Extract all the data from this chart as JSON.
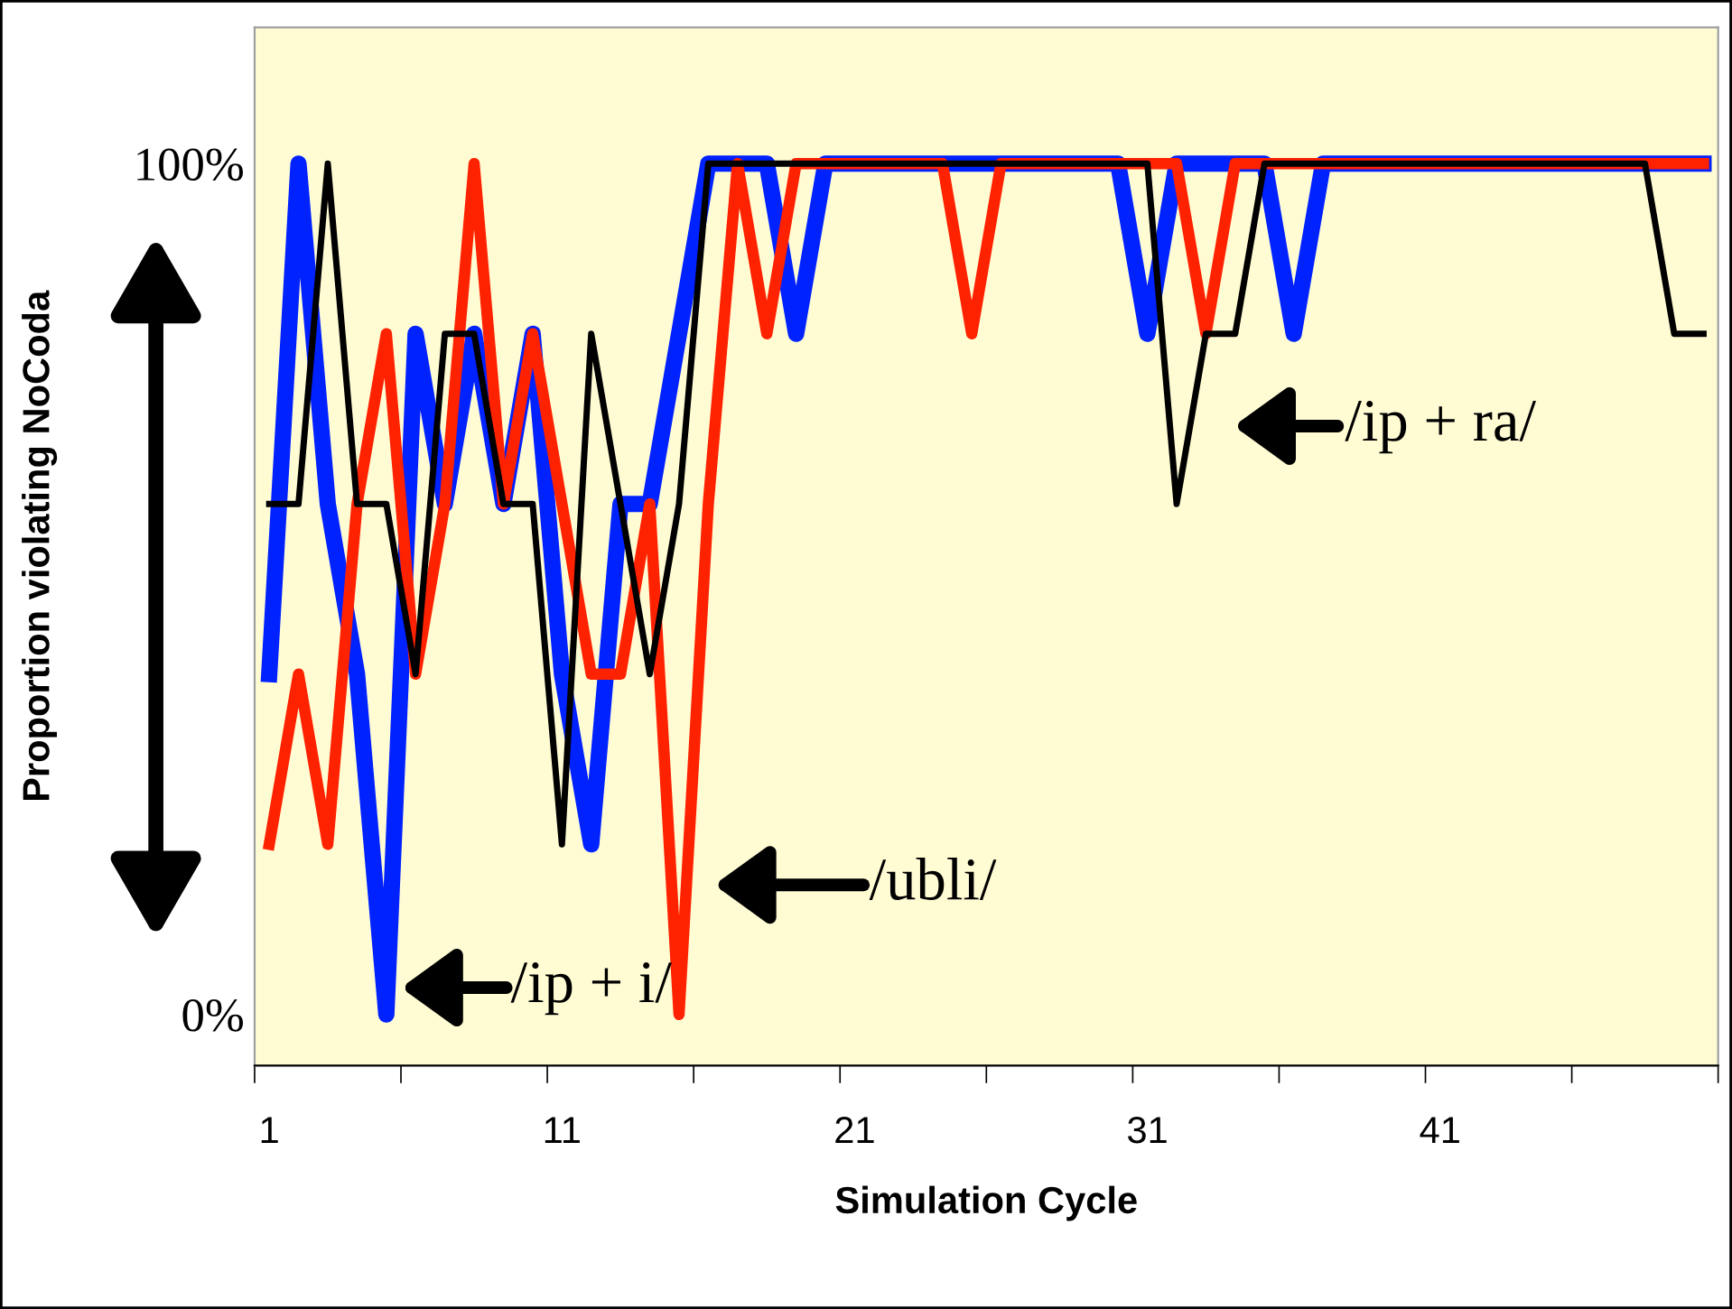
{
  "chart_data": {
    "type": "line",
    "xlabel": "Simulation Cycle",
    "ylabel": "Proportion violating NoCoda",
    "categories": [
      "1",
      null,
      null,
      null,
      null,
      null,
      null,
      null,
      null,
      null,
      "11",
      null,
      null,
      null,
      null,
      null,
      null,
      null,
      null,
      null,
      "21",
      null,
      null,
      null,
      null,
      null,
      null,
      null,
      null,
      null,
      "31",
      null,
      null,
      null,
      null,
      null,
      null,
      null,
      null,
      null,
      "41",
      null,
      null,
      null,
      null,
      null,
      null,
      null,
      null,
      null
    ],
    "series": [
      {
        "color": "#0022ff",
        "values": [
          40,
          100,
          60,
          40,
          0,
          80,
          60,
          80,
          60,
          80,
          40,
          20,
          60,
          60,
          80,
          100,
          100,
          100,
          80,
          100,
          100,
          100,
          100,
          100,
          100,
          100,
          100,
          100,
          100,
          100,
          80,
          100,
          100,
          100,
          100,
          80,
          100,
          100,
          100,
          100,
          100,
          100,
          100,
          100,
          100,
          100,
          100,
          100,
          100,
          100
        ]
      },
      {
        "color": "#ff2200",
        "values": [
          20,
          40,
          20,
          60,
          80,
          40,
          60,
          100,
          60,
          80,
          60,
          40,
          40,
          60,
          0,
          60,
          100,
          80,
          100,
          100,
          100,
          100,
          100,
          100,
          80,
          100,
          100,
          100,
          100,
          100,
          100,
          100,
          80,
          100,
          100,
          100,
          100,
          100,
          100,
          100,
          100,
          100,
          100,
          100,
          100,
          100,
          100,
          100,
          100,
          100
        ]
      },
      {
        "color": "#000000",
        "values": [
          60,
          60,
          100,
          60,
          60,
          40,
          80,
          80,
          60,
          60,
          20,
          80,
          60,
          40,
          60,
          100,
          100,
          100,
          100,
          100,
          100,
          100,
          100,
          100,
          100,
          100,
          100,
          100,
          100,
          100,
          100,
          60,
          80,
          80,
          100,
          100,
          100,
          100,
          100,
          100,
          100,
          100,
          100,
          100,
          100,
          100,
          100,
          100,
          80,
          80
        ]
      }
    ],
    "ylim": [
      -6,
      116
    ],
    "yticks": [
      {
        "value": 0,
        "label": "0%"
      },
      {
        "value": 100,
        "label": "100%"
      }
    ],
    "annotations": [
      "/ip + i/",
      "/ubli/",
      "/ip + ra/"
    ],
    "grid": false,
    "marker": "none",
    "line_style": "solid"
  }
}
